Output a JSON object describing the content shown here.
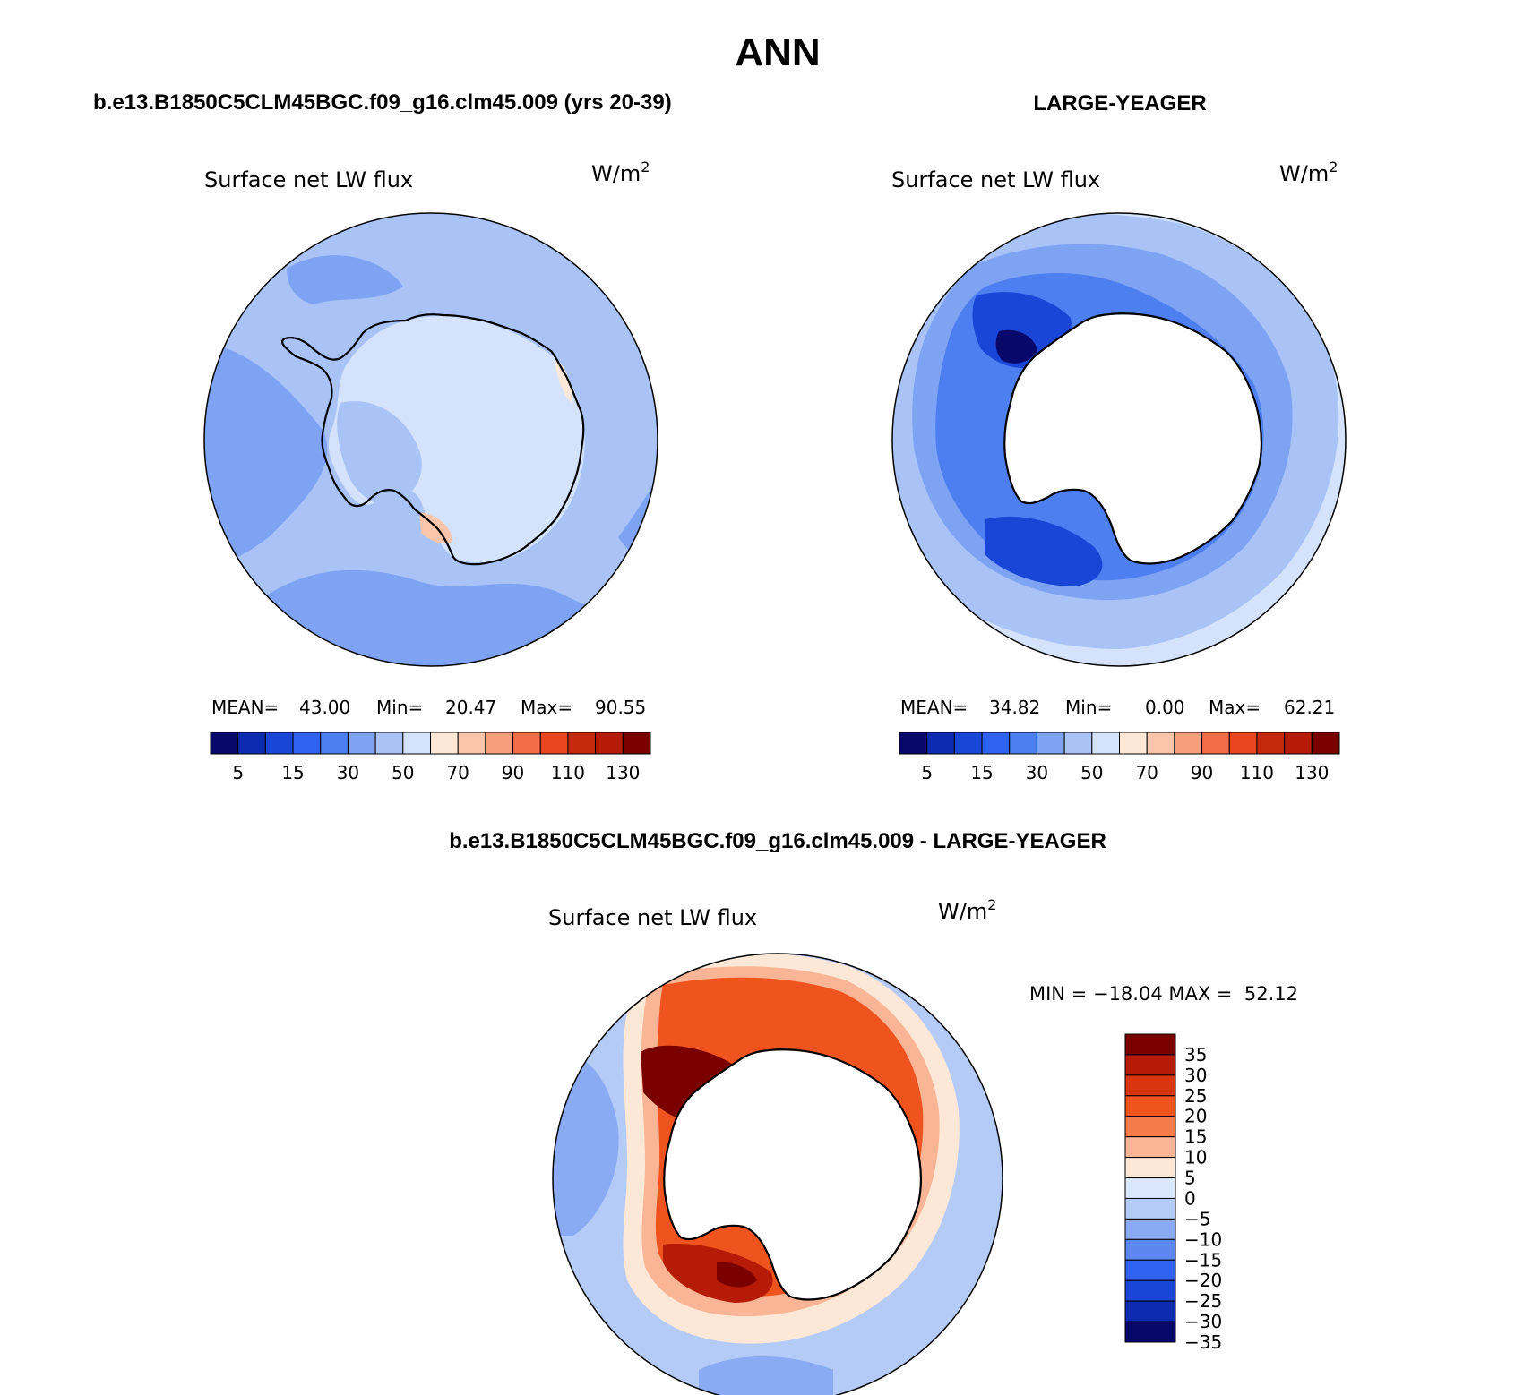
{
  "title": "ANN",
  "panels": [
    {
      "case": "b.e13.B1850C5CLM45BGC.f09_g16.clm45.009 (yrs 20-39)",
      "variable": "Surface net LW flux",
      "units": "W/m",
      "units_sup": "2",
      "stats": {
        "mean_label": "MEAN=",
        "mean": "43.00",
        "min_label": "Min=",
        "min": "20.47",
        "max_label": "Max=",
        "max": "90.55"
      },
      "mean_value": 43.0,
      "colorbar_ticks": [
        "5",
        "15",
        "30",
        "50",
        "70",
        "90",
        "110",
        "130"
      ]
    },
    {
      "case": "LARGE-YEAGER",
      "variable": "Surface net LW flux",
      "units": "W/m",
      "units_sup": "2",
      "stats": {
        "mean_label": "MEAN=",
        "mean": "34.82",
        "min_label": "Min=",
        "min": "0.00",
        "max_label": "Max=",
        "max": "62.21"
      },
      "mean_value": 34.82,
      "colorbar_ticks": [
        "5",
        "15",
        "30",
        "50",
        "70",
        "90",
        "110",
        "130"
      ]
    }
  ],
  "diff": {
    "title": "b.e13.B1850C5CLM45BGC.f09_g16.clm45.009 - LARGE-YEAGER",
    "variable": "Surface net LW flux",
    "units": "W/m",
    "units_sup": "2",
    "minmax": "MIN = −18.04 MAX =  52.12",
    "min_value": -18.04,
    "max_value": 52.12,
    "colorbar_ticks": [
      "35",
      "30",
      "25",
      "20",
      "15",
      "10",
      "5",
      "0",
      "−5",
      "−10",
      "−15",
      "−20",
      "−25",
      "−30",
      "−35"
    ]
  },
  "colors": {
    "horizontal_bar": [
      "#08086b",
      "#0c2bb0",
      "#1a46d8",
      "#2f62ee",
      "#4e7ff0",
      "#7fa3f3",
      "#a9c3f7",
      "#d4e3fb",
      "#fde8d8",
      "#fbc5ab",
      "#f79e7c",
      "#f36d48",
      "#e8461e",
      "#c32a0b",
      "#b51b06",
      "#7a0000"
    ],
    "vertical_bar": [
      "#7a0000",
      "#b51b06",
      "#d9360f",
      "#ef541f",
      "#f57b49",
      "#f9b596",
      "#fde8d8",
      "#dbe7fc",
      "#b4cbf8",
      "#8aabf3",
      "#5c87ef",
      "#2f62ee",
      "#1a46d8",
      "#0c2bb0",
      "#08086b"
    ],
    "land": "#ffffff",
    "coast": "#000000"
  }
}
